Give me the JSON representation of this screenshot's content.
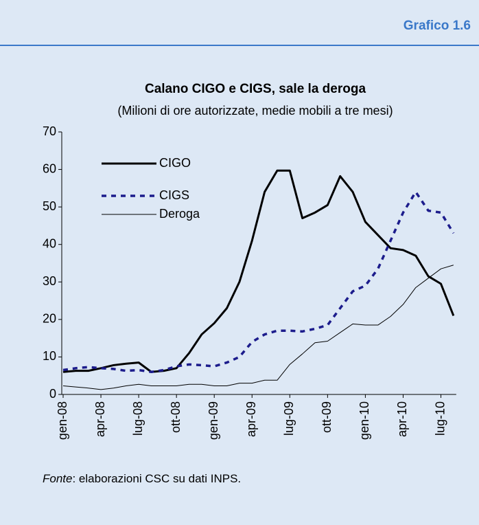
{
  "header": "Grafico 1.6",
  "source": {
    "label": "Fonte",
    "text": ": elaborazioni CSC su dati INPS."
  },
  "chart_data": {
    "type": "line",
    "title": "Calano CIGO e CIGS, sale la deroga",
    "subtitle": "(Milioni di ore autorizzate, medie mobili a tre mesi)",
    "categories": [
      "gen-08",
      null,
      null,
      "apr-08",
      null,
      null,
      "lug-08",
      null,
      null,
      "ott-08",
      null,
      null,
      "gen-09",
      null,
      null,
      "apr-09",
      null,
      null,
      "lug-09",
      null,
      null,
      "ott-09",
      null,
      null,
      "gen-10",
      null,
      null,
      "apr-10",
      null,
      null,
      "lug-10",
      null
    ],
    "series": [
      {
        "name": "CIGO",
        "color": "#000000",
        "dash": "solid",
        "width": 3,
        "values": [
          6,
          6.3,
          6.3,
          7,
          7.8,
          8.2,
          8.5,
          6,
          6.3,
          7,
          11,
          16,
          19,
          23,
          30,
          41,
          54,
          59.7,
          59.7,
          47,
          48.5,
          50.5,
          58.2,
          54,
          46,
          42.5,
          39,
          38.5,
          37,
          31.5,
          29.5,
          21
        ]
      },
      {
        "name": "CIGS",
        "color": "#1c1c8c",
        "dash": "dashed",
        "width": 3.5,
        "values": [
          6.5,
          7,
          7.3,
          7,
          6.8,
          6.3,
          6.5,
          6,
          6.5,
          7.5,
          8,
          7.8,
          7.5,
          8.5,
          10,
          14,
          16,
          17,
          17,
          16.8,
          17.5,
          18.5,
          23,
          27.5,
          29,
          33.5,
          41,
          48.5,
          54,
          49,
          48.5,
          43
        ]
      },
      {
        "name": "Deroga",
        "color": "#000000",
        "dash": "solid",
        "width": 1,
        "values": [
          2.3,
          2,
          1.7,
          1.3,
          1.7,
          2.3,
          2.7,
          2.3,
          2.3,
          2.3,
          2.7,
          2.7,
          2.3,
          2.3,
          3,
          3,
          3.8,
          3.8,
          8,
          10.8,
          13.8,
          14.2,
          16.5,
          18.8,
          18.5,
          18.5,
          20.8,
          24,
          28.5,
          31,
          33.5,
          34.5
        ]
      }
    ],
    "ylim": [
      0,
      70
    ],
    "yticks": [
      0,
      10,
      20,
      30,
      40,
      50,
      60,
      70
    ],
    "grid": false
  }
}
